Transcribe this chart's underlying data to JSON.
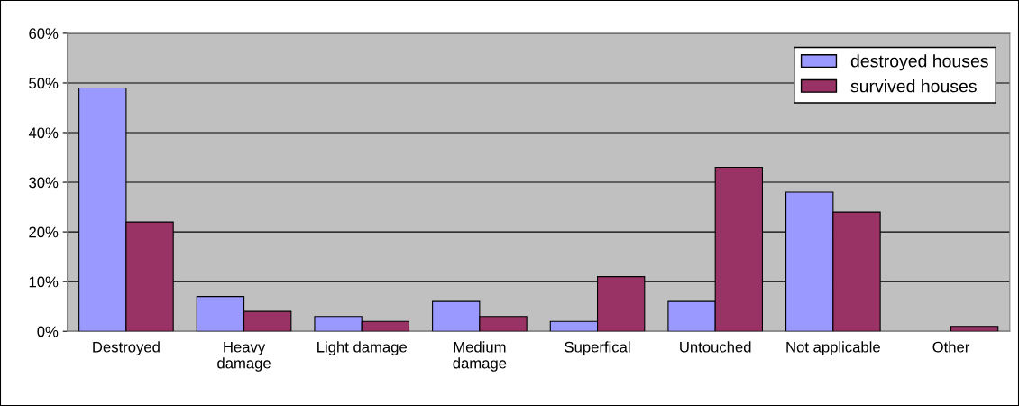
{
  "chart_data": {
    "type": "bar",
    "categories": [
      "Destroyed",
      "Heavy\ndamage",
      "Light damage",
      "Medium\ndamage",
      "Superfical",
      "Untouched",
      "Not applicable",
      "Other"
    ],
    "series": [
      {
        "name": "destroyed houses",
        "color": "#9999ff",
        "values": [
          49,
          7,
          3,
          6,
          2,
          6,
          28,
          null
        ]
      },
      {
        "name": "survived houses",
        "color": "#993366",
        "values": [
          22,
          4,
          2,
          3,
          11,
          33,
          24,
          1
        ]
      }
    ],
    "ylim": [
      0,
      60
    ],
    "yticks": [
      {
        "value": 0,
        "label": "0%"
      },
      {
        "value": 10,
        "label": "10%"
      },
      {
        "value": 20,
        "label": "20%"
      },
      {
        "value": 30,
        "label": "30%"
      },
      {
        "value": 40,
        "label": "40%"
      },
      {
        "value": 50,
        "label": "50%"
      },
      {
        "value": 60,
        "label": "60%"
      }
    ],
    "grid": "y",
    "legend": "top right"
  }
}
